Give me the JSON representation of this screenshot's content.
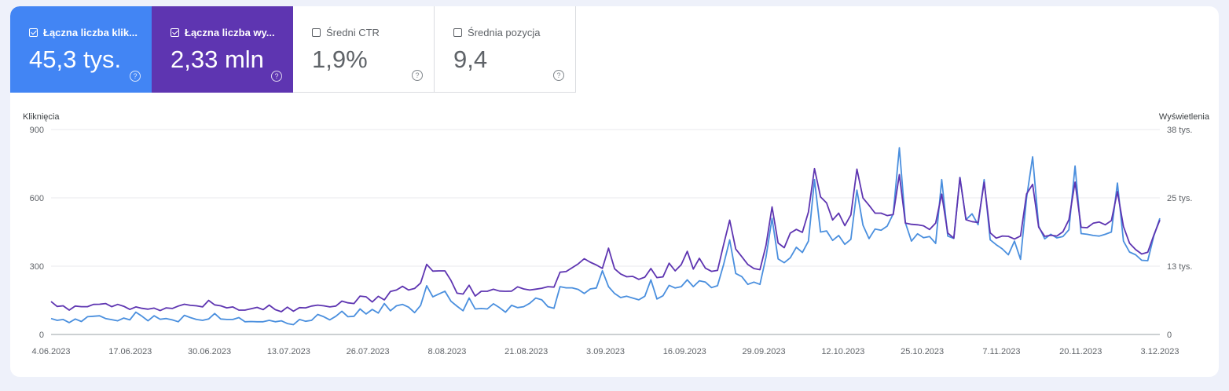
{
  "cards": [
    {
      "label": "Łączna liczba klik...",
      "value": "45,3 tys.",
      "checked": true,
      "color": "#4285f4"
    },
    {
      "label": "Łączna liczba wy...",
      "value": "2,33 mln",
      "checked": true,
      "color": "#5e35b1"
    },
    {
      "label": "Średni CTR",
      "value": "1,9%",
      "checked": false
    },
    {
      "label": "Średnia pozycja",
      "value": "9,4",
      "checked": false
    }
  ],
  "help_glyph": "?",
  "chart_data": {
    "type": "line",
    "ylabel": "Kliknięcia",
    "y2label": "Wyświetlenia",
    "ylim": [
      0,
      900
    ],
    "yticks": [
      "0",
      "300",
      "600",
      "900"
    ],
    "y2lim": [
      0,
      38000
    ],
    "y2ticks": [
      "0",
      "13 tys.",
      "25 tys.",
      "38 tys."
    ],
    "x_labels": [
      "4.06.2023",
      "17.06.2023",
      "30.06.2023",
      "13.07.2023",
      "26.07.2023",
      "8.08.2023",
      "21.08.2023",
      "3.09.2023",
      "16.09.2023",
      "29.09.2023",
      "12.10.2023",
      "25.10.2023",
      "7.11.2023",
      "20.11.2023",
      "3.12.2023"
    ],
    "x_start": "2023-06-04",
    "x_end": "2023-12-03",
    "grid": true,
    "series": [
      {
        "axis": "left",
        "color": "#4a8fde",
        "values": [
          70,
          62,
          66,
          52,
          68,
          57,
          78,
          80,
          82,
          70,
          65,
          60,
          72,
          64,
          98,
          80,
          60,
          82,
          67,
          70,
          64,
          56,
          84,
          74,
          66,
          62,
          68,
          92,
          68,
          66,
          66,
          74,
          56,
          57,
          56,
          56,
          62,
          56,
          60,
          48,
          43,
          66,
          58,
          62,
          88,
          78,
          64,
          80,
          102,
          78,
          80,
          112,
          90,
          110,
          94,
          136,
          104,
          126,
          132,
          120,
          96,
          128,
          214,
          165,
          178,
          190,
          146,
          124,
          104,
          160,
          112,
          114,
          112,
          135,
          118,
          98,
          128,
          118,
          122,
          137,
          160,
          152,
          122,
          115,
          210,
          205,
          205,
          198,
          180,
          200,
          204,
          280,
          210,
          180,
          162,
          168,
          160,
          152,
          168,
          240,
          156,
          170,
          216,
          204,
          210,
          240,
          210,
          236,
          230,
          206,
          214,
          308,
          415,
          268,
          254,
          220,
          230,
          220,
          340,
          510,
          332,
          315,
          337,
          383,
          360,
          410,
          680,
          450,
          455,
          413,
          435,
          396,
          418,
          634,
          480,
          421,
          463,
          458,
          476,
          530,
          820,
          490,
          410,
          442,
          425,
          430,
          400,
          680,
          432,
          422,
          690,
          504,
          530,
          482,
          680,
          416,
          394,
          376,
          350,
          410,
          330,
          600,
          780,
          476,
          420,
          440,
          424,
          430,
          460,
          740,
          443,
          440,
          435,
          432,
          440,
          450,
          665,
          410,
          362,
          350,
          326,
          324,
          432,
          510
        ]
      },
      {
        "axis": "right",
        "color": "#5e35b1",
        "values": [
          6107,
          5191,
          5317,
          4516,
          5275,
          5148,
          5149,
          5570,
          5612,
          5739,
          5149,
          5569,
          5232,
          4643,
          5106,
          4853,
          4685,
          4898,
          4433,
          4939,
          4813,
          5275,
          5612,
          5401,
          5316,
          5106,
          6317,
          5485,
          5317,
          4939,
          5106,
          4516,
          4517,
          4769,
          5021,
          4601,
          5444,
          4601,
          4221,
          5064,
          4306,
          4980,
          4939,
          5275,
          5443,
          5317,
          5106,
          5275,
          6191,
          5864,
          5738,
          7116,
          6992,
          6022,
          7074,
          6401,
          7960,
          8244,
          8919,
          8244,
          8539,
          9549,
          13001,
          11750,
          11791,
          11791,
          10024,
          7663,
          7495,
          9129,
          7116,
          8002,
          8002,
          8382,
          8045,
          8002,
          8034,
          8844,
          8444,
          8244,
          8402,
          8570,
          8864,
          8781,
          11548,
          11665,
          12381,
          13086,
          14056,
          13392,
          12886,
          12265,
          16002,
          12180,
          11222,
          10700,
          10771,
          10221,
          10632,
          12223,
          10540,
          10681,
          13222,
          11791,
          12938,
          15422,
          12127,
          14126,
          12286,
          11707,
          11874,
          16680,
          21205,
          15843,
          14426,
          12969,
          12223,
          12008,
          16506,
          23660,
          16960,
          16087,
          18802,
          19480,
          18942,
          22706,
          30744,
          25518,
          24392,
          21227,
          22492,
          20174,
          22168,
          30665,
          25297,
          23958,
          22495,
          22496,
          22038,
          22239,
          29645,
          20658,
          20420,
          20341,
          20150,
          19466,
          20658,
          26023,
          18818,
          17862,
          29063,
          21288,
          20918,
          20783,
          28217,
          18840,
          17868,
          18264,
          18204,
          17703,
          18264,
          26062,
          27840,
          19886,
          18205,
          18405,
          18264,
          19036,
          21290,
          28261,
          19880,
          19797,
          20636,
          20854,
          20341,
          21105,
          26480,
          20012,
          16930,
          15738,
          14928,
          15249,
          18422,
          21210
        ]
      }
    ]
  }
}
